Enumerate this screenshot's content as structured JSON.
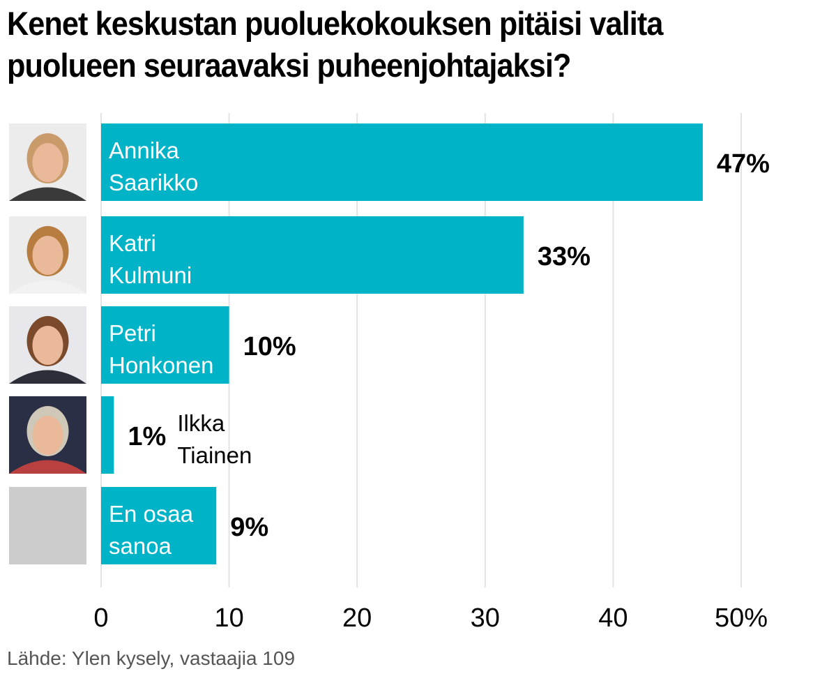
{
  "title_lines": [
    "Kenet keskustan puoluekokouksen pitäisi valita",
    "puolueen seuraavaksi puheenjohtajaksi?"
  ],
  "source": "Lähde: Ylen kysely, vastaajia 109",
  "colors": {
    "bar": "#00b3c7",
    "grid": "#e3e3e3",
    "placeholder": "#cccccc",
    "text": "#000000",
    "bar_label": "#ffffff"
  },
  "chart_data": {
    "type": "bar",
    "orientation": "horizontal",
    "title": "Kenet keskustan puoluekokouksen pitäisi valita puolueen seuraavaksi puheenjohtajaksi?",
    "categories": [
      [
        "Annika",
        "Saarikko"
      ],
      [
        "Katri",
        "Kulmuni"
      ],
      [
        "Petri",
        "Honkonen"
      ],
      [
        "Ilkka",
        "Tiainen"
      ],
      [
        "En osaa",
        "sanoa"
      ]
    ],
    "values": [
      47,
      33,
      10,
      1,
      9
    ],
    "value_labels": [
      "47%",
      "33%",
      "10%",
      "1%",
      "9%"
    ],
    "portrait_icons": [
      "portrait-photo-icon",
      "portrait-photo-icon",
      "portrait-photo-icon",
      "portrait-photo-icon",
      "placeholder-photo-icon"
    ],
    "xlim": [
      0,
      50
    ],
    "x_ticks": [
      0,
      10,
      20,
      30,
      40,
      50
    ],
    "x_tick_labels": [
      "0",
      "10",
      "20",
      "30",
      "40",
      "50%"
    ],
    "grid": true,
    "xlabel": "",
    "ylabel": ""
  }
}
